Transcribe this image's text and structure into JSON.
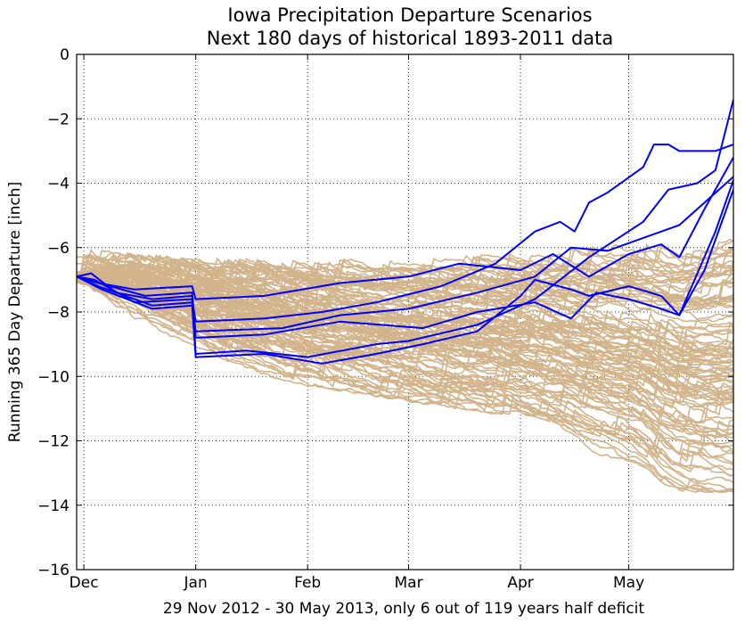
{
  "chart_data": {
    "type": "line",
    "title": "Iowa Precipitation Departure Scenarios",
    "subtitle": "Next 180 days of historical 1893-2011 data",
    "xlabel": "29 Nov 2012 - 30 May 2013, only 6 out of 119 years half deficit",
    "ylabel": "Running 365 Day Departure [inch]",
    "xlim": [
      "2012-11-29",
      "2013-05-30"
    ],
    "ylim": [
      -16,
      0
    ],
    "grid": true,
    "x_ticks": [
      {
        "label": "Dec",
        "date": "2012-12-01"
      },
      {
        "label": "Jan",
        "date": "2013-01-01"
      },
      {
        "label": "Feb",
        "date": "2013-02-01"
      },
      {
        "label": "Mar",
        "date": "2013-03-01"
      },
      {
        "label": "Apr",
        "date": "2013-04-01"
      },
      {
        "label": "May",
        "date": "2013-05-01"
      }
    ],
    "y_ticks": [
      0,
      -2,
      -4,
      -6,
      -8,
      -10,
      -12,
      -14,
      -16
    ],
    "scenario_color": "#d2b48c",
    "highlight_color": "#0000ff",
    "highlight_series": [
      {
        "points": [
          [
            "2012-11-29",
            -6.9
          ],
          [
            "2012-12-03",
            -6.8
          ],
          [
            "2012-12-10",
            -7.4
          ],
          [
            "2012-12-20",
            -7.6
          ],
          [
            "2012-12-31",
            -7.5
          ],
          [
            "2013-01-01",
            -9.3
          ],
          [
            "2013-01-15",
            -9.2
          ],
          [
            "2013-02-01",
            -9.4
          ],
          [
            "2013-02-20",
            -9.0
          ],
          [
            "2013-03-01",
            -8.9
          ],
          [
            "2013-03-20",
            -8.4
          ],
          [
            "2013-04-05",
            -7.6
          ],
          [
            "2013-04-20",
            -6.3
          ],
          [
            "2013-05-05",
            -5.2
          ],
          [
            "2013-05-12",
            -4.2
          ],
          [
            "2013-05-20",
            -4.0
          ],
          [
            "2013-05-25",
            -3.6
          ],
          [
            "2013-05-30",
            -1.4
          ]
        ]
      },
      {
        "points": [
          [
            "2012-11-29",
            -6.9
          ],
          [
            "2012-12-04",
            -7.0
          ],
          [
            "2012-12-15",
            -7.7
          ],
          [
            "2012-12-31",
            -7.6
          ],
          [
            "2013-01-01",
            -8.3
          ],
          [
            "2013-01-20",
            -8.2
          ],
          [
            "2013-02-05",
            -8.0
          ],
          [
            "2013-02-20",
            -7.7
          ],
          [
            "2013-03-10",
            -7.2
          ],
          [
            "2013-03-25",
            -6.5
          ],
          [
            "2013-04-05",
            -5.5
          ],
          [
            "2013-04-12",
            -5.2
          ],
          [
            "2013-04-16",
            -5.5
          ],
          [
            "2013-04-20",
            -4.6
          ],
          [
            "2013-04-25",
            -4.3
          ],
          [
            "2013-05-05",
            -3.5
          ],
          [
            "2013-05-08",
            -2.8
          ],
          [
            "2013-05-12",
            -2.8
          ],
          [
            "2013-05-15",
            -3.0
          ],
          [
            "2013-05-25",
            -3.0
          ],
          [
            "2013-05-30",
            -2.8
          ]
        ]
      },
      {
        "points": [
          [
            "2012-11-29",
            -6.9
          ],
          [
            "2012-12-05",
            -7.2
          ],
          [
            "2012-12-20",
            -7.8
          ],
          [
            "2012-12-31",
            -7.7
          ],
          [
            "2013-01-01",
            -8.6
          ],
          [
            "2013-01-25",
            -8.5
          ],
          [
            "2013-02-10",
            -8.1
          ],
          [
            "2013-03-01",
            -7.9
          ],
          [
            "2013-03-20",
            -7.4
          ],
          [
            "2013-04-05",
            -6.9
          ],
          [
            "2013-04-15",
            -6.0
          ],
          [
            "2013-04-25",
            -6.1
          ],
          [
            "2013-05-05",
            -5.7
          ],
          [
            "2013-05-15",
            -5.3
          ],
          [
            "2013-05-22",
            -4.6
          ],
          [
            "2013-05-30",
            -3.8
          ]
        ]
      },
      {
        "points": [
          [
            "2012-11-29",
            -6.9
          ],
          [
            "2012-12-05",
            -7.1
          ],
          [
            "2012-12-15",
            -7.3
          ],
          [
            "2012-12-31",
            -7.2
          ],
          [
            "2013-01-01",
            -7.6
          ],
          [
            "2013-01-20",
            -7.5
          ],
          [
            "2013-02-10",
            -7.1
          ],
          [
            "2013-03-01",
            -6.9
          ],
          [
            "2013-03-15",
            -6.5
          ],
          [
            "2013-04-01",
            -6.7
          ],
          [
            "2013-04-10",
            -6.2
          ],
          [
            "2013-04-20",
            -6.9
          ],
          [
            "2013-05-01",
            -6.2
          ],
          [
            "2013-05-10",
            -5.9
          ],
          [
            "2013-05-15",
            -6.3
          ],
          [
            "2013-05-22",
            -4.8
          ],
          [
            "2013-05-30",
            -3.2
          ]
        ]
      },
      {
        "points": [
          [
            "2012-11-29",
            -6.9
          ],
          [
            "2012-12-06",
            -7.3
          ],
          [
            "2012-12-20",
            -7.9
          ],
          [
            "2012-12-31",
            -7.8
          ],
          [
            "2013-01-01",
            -9.4
          ],
          [
            "2013-01-20",
            -9.3
          ],
          [
            "2013-02-05",
            -9.6
          ],
          [
            "2013-02-20",
            -9.3
          ],
          [
            "2013-03-05",
            -9.0
          ],
          [
            "2013-03-20",
            -8.6
          ],
          [
            "2013-04-01",
            -7.5
          ],
          [
            "2013-04-05",
            -7.0
          ],
          [
            "2013-04-15",
            -7.3
          ],
          [
            "2013-04-20",
            -7.5
          ],
          [
            "2013-05-01",
            -7.2
          ],
          [
            "2013-05-10",
            -7.5
          ],
          [
            "2013-05-15",
            -8.1
          ],
          [
            "2013-05-25",
            -5.5
          ],
          [
            "2013-05-30",
            -3.9
          ]
        ]
      },
      {
        "points": [
          [
            "2012-11-29",
            -6.9
          ],
          [
            "2012-12-05",
            -7.1
          ],
          [
            "2012-12-18",
            -7.5
          ],
          [
            "2012-12-31",
            -7.4
          ],
          [
            "2013-01-01",
            -8.8
          ],
          [
            "2013-01-20",
            -8.7
          ],
          [
            "2013-02-10",
            -8.3
          ],
          [
            "2013-03-05",
            -8.5
          ],
          [
            "2013-03-20",
            -8.0
          ],
          [
            "2013-04-05",
            -7.7
          ],
          [
            "2013-04-15",
            -8.2
          ],
          [
            "2013-04-22",
            -7.4
          ],
          [
            "2013-05-01",
            -7.6
          ],
          [
            "2013-05-10",
            -7.9
          ],
          [
            "2013-05-15",
            -8.1
          ],
          [
            "2013-05-22",
            -6.7
          ],
          [
            "2013-05-30",
            -4.2
          ]
        ]
      }
    ],
    "scenario_series_count": 113,
    "scenario_envelope": {
      "dates": [
        "2012-11-29",
        "2012-12-15",
        "2013-01-01",
        "2013-02-01",
        "2013-03-01",
        "2013-04-01",
        "2013-04-15",
        "2013-05-01",
        "2013-05-10",
        "2013-05-20",
        "2013-05-30"
      ],
      "upper": [
        -6.0,
        -6.2,
        -6.3,
        -6.4,
        -6.3,
        -6.2,
        -6.0,
        -5.8,
        -5.9,
        -5.6,
        -4.9
      ],
      "lower": [
        -7.4,
        -8.4,
        -9.5,
        -10.3,
        -10.8,
        -11.3,
        -12.2,
        -12.7,
        -14.2,
        -13.6,
        -13.6
      ]
    }
  }
}
